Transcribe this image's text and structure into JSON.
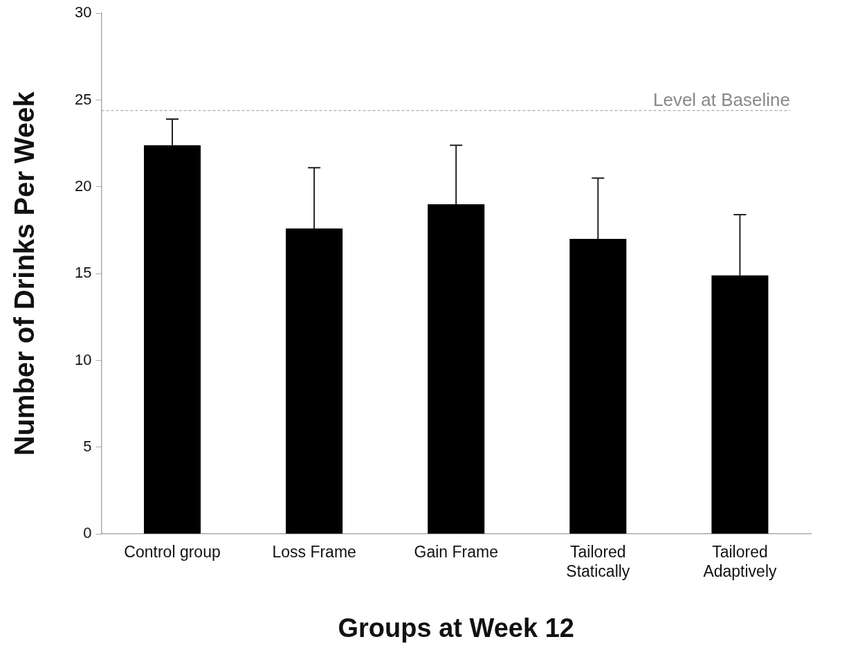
{
  "chart_data": {
    "type": "bar",
    "xlabel": "Groups at Week 12",
    "ylabel": "Number of Drinks Per Week",
    "categories": [
      "Control group",
      "Loss Frame",
      "Gain Frame",
      "Tailored Statically",
      "Tailored Adaptively"
    ],
    "values": [
      22.4,
      17.6,
      19.0,
      17.0,
      14.9
    ],
    "errors": [
      [
        22.4,
        23.9
      ],
      [
        17.6,
        21.1
      ],
      [
        19.0,
        22.4
      ],
      [
        17.0,
        20.5
      ],
      [
        14.9,
        18.4
      ]
    ],
    "color": "#000000",
    "ylim": [
      0,
      30
    ],
    "yticks": [
      0,
      5,
      10,
      15,
      20,
      25,
      30
    ],
    "ref_lines": [
      {
        "axis": "y",
        "value": 24.4,
        "label": "Level at Baseline",
        "color": "#aaaaaa",
        "line_style": "dashed"
      }
    ],
    "grid": false,
    "legend": false
  }
}
